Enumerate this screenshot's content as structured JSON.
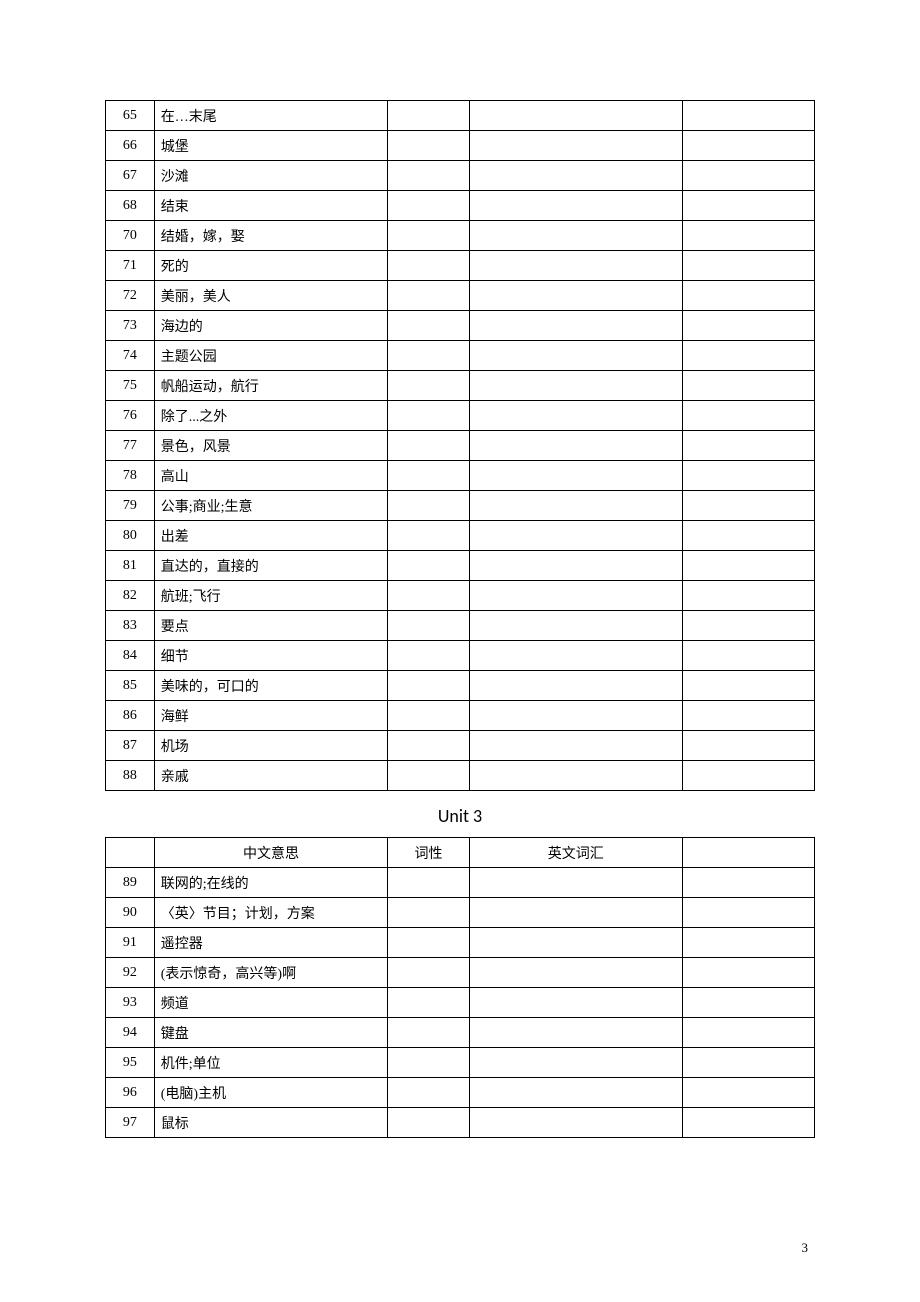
{
  "section_title": "Unit    3",
  "page_number": "3",
  "headers": {
    "cn": "中文意思",
    "pos": "词性",
    "en": "英文词汇"
  },
  "colors": {
    "border": "#000000",
    "background": "#ffffff",
    "text": "#000000"
  },
  "table1": [
    {
      "n": "65",
      "cn": "在…末尾"
    },
    {
      "n": "66",
      "cn": "城堡"
    },
    {
      "n": "67",
      "cn": "沙滩"
    },
    {
      "n": "68",
      "cn": "结束"
    },
    {
      "n": "70",
      "cn": "结婚，嫁，娶"
    },
    {
      "n": "71",
      "cn": "死的"
    },
    {
      "n": "72",
      "cn": "美丽，美人"
    },
    {
      "n": "73",
      "cn": "海边的"
    },
    {
      "n": "74",
      "cn": "主题公园"
    },
    {
      "n": "75",
      "cn": "帆船运动，航行"
    },
    {
      "n": "76",
      "cn": "除了...之外"
    },
    {
      "n": "77",
      "cn": "景色，风景"
    },
    {
      "n": "78",
      "cn": "高山"
    },
    {
      "n": "79",
      "cn": "公事;商业;生意"
    },
    {
      "n": "80",
      "cn": "出差"
    },
    {
      "n": "81",
      "cn": "直达的，直接的"
    },
    {
      "n": "82",
      "cn": "航班;飞行"
    },
    {
      "n": "83",
      "cn": "要点"
    },
    {
      "n": "84",
      "cn": "细节"
    },
    {
      "n": "85",
      "cn": "美味的，可口的"
    },
    {
      "n": "86",
      "cn": "海鲜"
    },
    {
      "n": "87",
      "cn": "机场"
    },
    {
      "n": "88",
      "cn": "亲戚"
    }
  ],
  "table2": [
    {
      "n": "89",
      "cn": "联网的;在线的"
    },
    {
      "n": "90",
      "cn": "〈英〉节目；计划，方案"
    },
    {
      "n": "91",
      "cn": "遥控器"
    },
    {
      "n": "92",
      "cn": "(表示惊奇，高兴等)啊"
    },
    {
      "n": "93",
      "cn": "频道"
    },
    {
      "n": "94",
      "cn": "键盘"
    },
    {
      "n": "95",
      "cn": "机件;单位"
    },
    {
      "n": "96",
      "cn": "(电脑)主机"
    },
    {
      "n": "97",
      "cn": "鼠标"
    }
  ]
}
